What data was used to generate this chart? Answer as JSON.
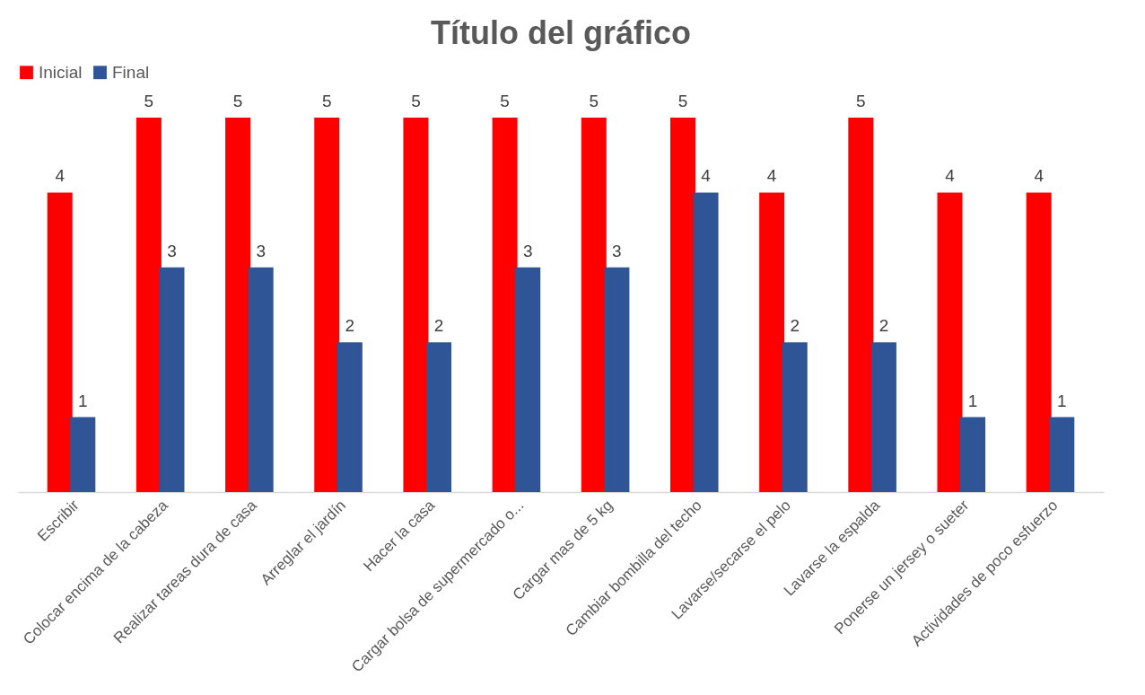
{
  "chart_data": {
    "type": "bar",
    "title": "Título del gráfico",
    "categories": [
      "Escribir",
      "Colocar encima de la cabeza",
      "Realizar tareas dura de casa",
      "Arreglar el jardín",
      "Hacer la casa",
      "Cargar bolsa de supermercado o...",
      "Cargar mas de 5 kg",
      "Cambiar bombilla del techo",
      "Lavarse/secarse el pelo",
      "Lavarse la espalda",
      "Ponerse un jersey o sueter",
      "Actividades de poco esfuerzo"
    ],
    "series": [
      {
        "name": "Inicial",
        "color": "#ff0000",
        "values": [
          4,
          5,
          5,
          5,
          5,
          5,
          5,
          5,
          4,
          5,
          4,
          4
        ]
      },
      {
        "name": "Final",
        "color": "#2f5597",
        "values": [
          1,
          3,
          3,
          2,
          2,
          3,
          3,
          4,
          2,
          2,
          1,
          1
        ]
      }
    ],
    "data_labels": true,
    "legend": "top",
    "grid": false,
    "tick_labels": "x"
  }
}
